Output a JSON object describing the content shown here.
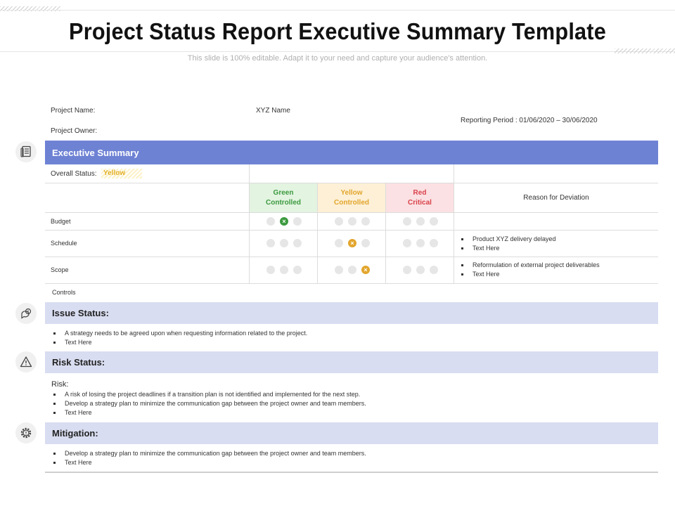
{
  "title": "Project Status Report Executive Summary Template",
  "subtitle": "This slide is 100% editable. Adapt it to your need and capture your audience's attention.",
  "info": {
    "project_name_label": "Project Name:",
    "project_name_value": "XYZ Name",
    "project_owner_label": "Project Owner:",
    "reporting_period": "Reporting Period : 01/06/2020 – 30/06/2020"
  },
  "executive_summary": {
    "heading": "Executive Summary",
    "overall_status_label": "Overall Status:",
    "overall_status_value": "Yellow",
    "columns": [
      {
        "label": "Green\nControlled",
        "bg": "#e3f4e1",
        "fg": "#3c9a3f"
      },
      {
        "label": "Yellow\nControlled",
        "bg": "#fdf0d6",
        "fg": "#e2a52c"
      },
      {
        "label": "Red\nCritical",
        "bg": "#fbe1e3",
        "fg": "#d9414b"
      }
    ],
    "reason_header": "Reason for Deviation",
    "rows": [
      {
        "label": "Budget",
        "status_column": 0,
        "status_position": 1,
        "reasons": []
      },
      {
        "label": "Schedule",
        "status_column": 1,
        "status_position": 1,
        "reasons": [
          "Product XYZ delivery delayed",
          "Text Here"
        ]
      },
      {
        "label": "Scope",
        "status_column": 1,
        "status_position": 2,
        "reasons": [
          "Reformulation of external project deliverables",
          "Text Here"
        ]
      }
    ],
    "controls_label": "Controls"
  },
  "issue_status": {
    "heading": "Issue Status:",
    "bullets": [
      "A strategy needs to be agreed upon when requesting information related to the project.",
      "Text Here"
    ]
  },
  "risk_status": {
    "heading": "Risk Status:",
    "intro": "Risk:",
    "bullets": [
      "A risk of losing the project deadlines if a transition plan is not identified and implemented for the next step.",
      "Develop a strategy plan to minimize the communication gap between the project owner and team members.",
      "Text Here"
    ]
  },
  "mitigation": {
    "heading": "Mitigation:",
    "bullets": [
      "Develop a strategy plan to minimize the communication gap between the project owner and team members.",
      "Text Here"
    ]
  },
  "icons": {
    "summary": "document-list-icon",
    "issue": "chat-bubbles-icon",
    "risk": "warning-icon",
    "mitigation": "gear-icon"
  },
  "colors": {
    "summary_bar": "#6e82d4",
    "section_bar": "#d9ddf1",
    "green_mark": "#3c9a3f",
    "yellow_mark": "#e2a52c"
  }
}
